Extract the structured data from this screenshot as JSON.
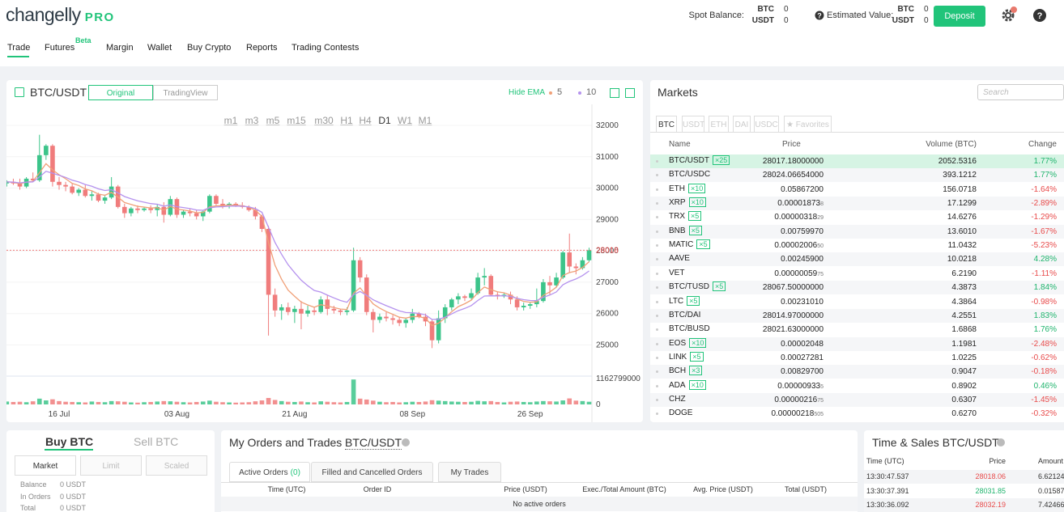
{
  "header": {
    "logo": "changelly",
    "logo_pro": "PRO",
    "spot_label": "Spot Balance:",
    "spot": [
      {
        "asset": "BTC",
        "amount": "0"
      },
      {
        "asset": "USDT",
        "amount": "0"
      }
    ],
    "estimated_label": "Estimated Value:",
    "estimated": [
      {
        "asset": "BTC",
        "amount": "0"
      },
      {
        "asset": "USDT",
        "amount": "0"
      }
    ],
    "deposit": "Deposit"
  },
  "nav": {
    "items": [
      "Trade",
      "Futures",
      "Margin",
      "Wallet",
      "Buy Crypto",
      "Reports",
      "Trading Contests"
    ],
    "badge": "Beta"
  },
  "chart_panel": {
    "pair": "BTC/USDT",
    "views": [
      "Original",
      "TradingView"
    ],
    "hide_ema": "Hide EMA",
    "timeframes": [
      "m1",
      "m3",
      "m5",
      "m15",
      "m30",
      "H1",
      "H4",
      "D1",
      "W1",
      "M1"
    ],
    "active_timeframe": 7
  },
  "chart": {
    "type": "candlestick",
    "up_color": "#3cc48a",
    "down_color": "#f07c7c",
    "ema": [
      {
        "period": 5,
        "color": "#f0a078"
      },
      {
        "period": 10,
        "color": "#b592ee"
      }
    ],
    "ylim": [
      24110,
      32670
    ],
    "yticks": [
      25000,
      26000,
      27000,
      28000,
      29000,
      30000,
      31000,
      32000
    ],
    "vlim": [
      0,
      1162799000
    ],
    "vticks": [
      0,
      1162799000
    ],
    "categories": [
      null,
      null,
      null,
      null,
      null,
      null,
      null,
      null,
      "16 Jul",
      null,
      null,
      null,
      null,
      null,
      null,
      null,
      null,
      null,
      null,
      null,
      null,
      null,
      null,
      null,
      null,
      null,
      "03 Aug",
      null,
      null,
      null,
      null,
      null,
      null,
      null,
      null,
      null,
      null,
      null,
      null,
      null,
      null,
      null,
      null,
      null,
      "21 Aug",
      null,
      null,
      null,
      null,
      null,
      null,
      null,
      null,
      null,
      null,
      null,
      null,
      null,
      null,
      null,
      null,
      null,
      "08 Sep",
      null,
      null,
      null,
      null,
      null,
      null,
      null,
      null,
      null,
      null,
      null,
      null,
      null,
      null,
      null,
      null,
      null,
      "26 Sep",
      null,
      null,
      null,
      null,
      null,
      null,
      null,
      null,
      null
    ],
    "candles": [
      [
        30150,
        30250,
        30050,
        30200
      ],
      [
        30200,
        30300,
        30100,
        30150
      ],
      [
        30150,
        30300,
        29950,
        30050
      ],
      [
        30050,
        30350,
        30000,
        30300
      ],
      [
        30300,
        30500,
        30200,
        30250
      ],
      [
        30250,
        31700,
        30200,
        31050
      ],
      [
        31050,
        31400,
        30900,
        31350
      ],
      [
        31350,
        31400,
        30050,
        30200
      ],
      [
        30200,
        30350,
        29950,
        30100
      ],
      [
        30100,
        30200,
        29900,
        30050
      ],
      [
        30050,
        30150,
        29800,
        29850
      ],
      [
        29850,
        30000,
        29750,
        29950
      ],
      [
        29950,
        30100,
        29700,
        29750
      ],
      [
        29750,
        29900,
        29600,
        29800
      ],
      [
        29800,
        29850,
        29550,
        29600
      ],
      [
        29600,
        29750,
        29500,
        29700
      ],
      [
        29700,
        30350,
        29650,
        30050
      ],
      [
        30050,
        30100,
        29350,
        29400
      ],
      [
        29400,
        29500,
        29050,
        29200
      ],
      [
        29200,
        29400,
        29100,
        29350
      ],
      [
        29350,
        29450,
        29200,
        29300
      ],
      [
        29300,
        29400,
        29250,
        29350
      ],
      [
        29350,
        29450,
        29200,
        29300
      ],
      [
        29300,
        29500,
        29100,
        29400
      ],
      [
        29400,
        29550,
        28900,
        29150
      ],
      [
        29150,
        29750,
        29100,
        29650
      ],
      [
        29650,
        29700,
        29050,
        29150
      ],
      [
        29150,
        29300,
        29050,
        29250
      ],
      [
        29250,
        29350,
        29100,
        29200
      ],
      [
        29200,
        29300,
        29000,
        29100
      ],
      [
        29100,
        29300,
        28950,
        29250
      ],
      [
        29250,
        29800,
        29200,
        29750
      ],
      [
        29750,
        29800,
        29450,
        29500
      ],
      [
        29500,
        29650,
        29350,
        29450
      ],
      [
        29450,
        29550,
        29350,
        29500
      ],
      [
        29500,
        29550,
        29400,
        29450
      ],
      [
        29450,
        29550,
        29350,
        29400
      ],
      [
        29400,
        29450,
        29250,
        29300
      ],
      [
        29300,
        29400,
        29000,
        29100
      ],
      [
        29100,
        29150,
        28600,
        28700
      ],
      [
        28700,
        28800,
        25300,
        26600
      ],
      [
        26600,
        26800,
        25900,
        26100
      ],
      [
        26100,
        26300,
        25800,
        26200
      ],
      [
        26200,
        26350,
        25950,
        26050
      ],
      [
        26050,
        26250,
        25700,
        26150
      ],
      [
        26150,
        26400,
        25500,
        26000
      ],
      [
        26000,
        26250,
        25900,
        26100
      ],
      [
        26100,
        26200,
        25950,
        26050
      ],
      [
        26050,
        26550,
        26000,
        26450
      ],
      [
        26450,
        26600,
        25950,
        26150
      ],
      [
        26150,
        26250,
        26000,
        26100
      ],
      [
        26100,
        26150,
        25950,
        26050
      ],
      [
        26050,
        26200,
        25950,
        26100
      ],
      [
        26100,
        28100,
        26050,
        27700
      ],
      [
        27700,
        27800,
        27000,
        27150
      ],
      [
        27150,
        27250,
        25950,
        26050
      ],
      [
        26050,
        26150,
        25400,
        25800
      ],
      [
        25800,
        26000,
        25700,
        25900
      ],
      [
        25900,
        26050,
        25750,
        25850
      ],
      [
        25850,
        25950,
        25650,
        25800
      ],
      [
        25800,
        25900,
        25600,
        25700
      ],
      [
        25700,
        25850,
        25550,
        25800
      ],
      [
        25800,
        26150,
        25700,
        26000
      ],
      [
        26000,
        26050,
        25850,
        25900
      ],
      [
        25900,
        26000,
        25600,
        25750
      ],
      [
        25750,
        25800,
        24900,
        25150
      ],
      [
        25150,
        26100,
        25050,
        25850
      ],
      [
        25850,
        26300,
        25700,
        26200
      ],
      [
        26200,
        26500,
        26100,
        26450
      ],
      [
        26450,
        26650,
        26300,
        26550
      ],
      [
        26550,
        26600,
        26400,
        26500
      ],
      [
        26500,
        26800,
        26450,
        26650
      ],
      [
        26650,
        27300,
        26600,
        27150
      ],
      [
        27150,
        27450,
        26900,
        27200
      ],
      [
        27200,
        27250,
        26550,
        26600
      ],
      [
        26600,
        26700,
        26450,
        26550
      ],
      [
        26550,
        26650,
        26500,
        26600
      ],
      [
        26600,
        26700,
        26300,
        26450
      ],
      [
        26450,
        26550,
        26100,
        26200
      ],
      [
        26200,
        26350,
        26100,
        26250
      ],
      [
        26250,
        26350,
        26150,
        26300
      ],
      [
        26300,
        26800,
        26200,
        26400
      ],
      [
        26400,
        27100,
        26350,
        27000
      ],
      [
        27000,
        27200,
        26600,
        26900
      ],
      [
        26900,
        27300,
        26850,
        27150
      ],
      [
        27150,
        28000,
        27100,
        27950
      ],
      [
        27950,
        28550,
        27300,
        27500
      ],
      [
        27500,
        27600,
        27250,
        27450
      ],
      [
        27450,
        27800,
        27400,
        27700
      ],
      [
        27700,
        28100,
        27650,
        28018
      ]
    ],
    "volumes": [
      130000000,
      110000000,
      120000000,
      100000000,
      140000000,
      260000000,
      180000000,
      230000000,
      150000000,
      120000000,
      110000000,
      100000000,
      90000000,
      130000000,
      110000000,
      100000000,
      150000000,
      140000000,
      120000000,
      90000000,
      80000000,
      100000000,
      110000000,
      130000000,
      150000000,
      140000000,
      120000000,
      100000000,
      90000000,
      110000000,
      130000000,
      170000000,
      120000000,
      100000000,
      90000000,
      80000000,
      90000000,
      100000000,
      140000000,
      180000000,
      290000000,
      200000000,
      150000000,
      120000000,
      110000000,
      130000000,
      100000000,
      90000000,
      140000000,
      120000000,
      100000000,
      90000000,
      110000000,
      1120000000,
      260000000,
      220000000,
      170000000,
      120000000,
      100000000,
      110000000,
      90000000,
      100000000,
      120000000,
      110000000,
      130000000,
      190000000,
      170000000,
      150000000,
      130000000,
      120000000,
      110000000,
      120000000,
      160000000,
      140000000,
      150000000,
      110000000,
      90000000,
      120000000,
      130000000,
      110000000,
      100000000,
      130000000,
      150000000,
      140000000,
      130000000,
      180000000,
      270000000,
      170000000,
      150000000,
      120000000
    ]
  },
  "markets": {
    "title": "Markets",
    "search": "Search",
    "tabs": [
      "BTC",
      "USDT",
      "ETH",
      "DAI",
      "USDC",
      "★ Favorites"
    ],
    "columns": [
      "Name",
      "Price",
      "Volume (BTC)",
      "Change"
    ],
    "rows": [
      {
        "name": "BTC/USDT",
        "lev": "×25",
        "price": "28017.18000000",
        "volume": "2052.5316",
        "change": "1.77%"
      },
      {
        "name": "BTC/USDC",
        "price": "28024.06654000",
        "volume": "393.1212",
        "change": "1.77%"
      },
      {
        "name": "ETH",
        "lev": "×10",
        "price": "0.05867200",
        "volume": "156.0718",
        "change": "-1.64%"
      },
      {
        "name": "XRP",
        "lev": "×10",
        "price": "0.00001873",
        "tail": "8",
        "volume": "17.1299",
        "change": "-2.89%"
      },
      {
        "name": "TRX",
        "lev": "×5",
        "price": "0.00000318",
        "tail": "29",
        "volume": "14.6276",
        "change": "-1.29%"
      },
      {
        "name": "BNB",
        "lev": "×5",
        "price": "0.00759970",
        "volume": "13.6010",
        "change": "-1.67%"
      },
      {
        "name": "MATIC",
        "lev": "×5",
        "price": "0.00002006",
        "tail": "50",
        "volume": "11.0432",
        "change": "-5.23%"
      },
      {
        "name": "AAVE",
        "price": "0.00245900",
        "volume": "10.0218",
        "change": "4.28%"
      },
      {
        "name": "VET",
        "price": "0.00000059",
        "tail": "75",
        "volume": "6.2190",
        "change": "-1.11%"
      },
      {
        "name": "BTC/TUSD",
        "lev": "×5",
        "price": "28067.50000000",
        "volume": "4.3873",
        "change": "1.84%"
      },
      {
        "name": "LTC",
        "lev": "×5",
        "price": "0.00231010",
        "volume": "4.3864",
        "change": "-0.98%"
      },
      {
        "name": "BTC/DAI",
        "price": "28014.97000000",
        "volume": "4.2551",
        "change": "1.83%"
      },
      {
        "name": "BTC/BUSD",
        "price": "28021.63000000",
        "volume": "1.6868",
        "change": "1.76%"
      },
      {
        "name": "EOS",
        "lev": "×10",
        "price": "0.00002048",
        "volume": "1.1981",
        "change": "-2.48%"
      },
      {
        "name": "LINK",
        "lev": "×5",
        "price": "0.00027281",
        "volume": "1.0225",
        "change": "-0.62%"
      },
      {
        "name": "BCH",
        "lev": "×3",
        "price": "0.00829700",
        "volume": "0.9047",
        "change": "-0.18%"
      },
      {
        "name": "ADA",
        "lev": "×10",
        "price": "0.00000933",
        "tail": "5",
        "volume": "0.8902",
        "change": "0.46%"
      },
      {
        "name": "CHZ",
        "price": "0.00000216",
        "tail": "75",
        "volume": "0.6307",
        "change": "-1.45%"
      },
      {
        "name": "DOGE",
        "price": "0.00000218",
        "tail": "505",
        "volume": "0.6270",
        "change": "-0.32%"
      }
    ]
  },
  "trade_form": {
    "sides": [
      "Buy BTC",
      "Sell BTC"
    ],
    "order_types": [
      "Market",
      "Limit",
      "Scaled"
    ],
    "balances": [
      [
        "Balance",
        "0 USDT"
      ],
      [
        "In Orders",
        "0 USDT"
      ],
      [
        "Total",
        "0 USDT"
      ]
    ]
  },
  "orders": {
    "title": "My Orders and Trades",
    "pair": "BTC/USDT",
    "tabs": [
      "Active Orders",
      "Filled and Cancelled Orders",
      "My Trades"
    ],
    "active_count": "(0)",
    "columns": [
      "Time (UTC)",
      "Order ID",
      "Price (USDT)",
      "Exec./Total Amount (BTC)",
      "Avg. Price (USDT)",
      "Total (USDT)"
    ],
    "empty": "No active orders"
  },
  "time_sales": {
    "title": "Time & Sales",
    "pair": "BTC/USDT",
    "columns": [
      "Time (UTC)",
      "Price",
      "Amount"
    ],
    "rows": [
      {
        "time": "13:30:47.537",
        "price": "28018.06",
        "amount": "6.62124",
        "color": "#e84b4b"
      },
      {
        "time": "13:30:37.391",
        "price": "28031.85",
        "amount": "0.01587",
        "color": "#1fb46d"
      },
      {
        "time": "13:30:36.092",
        "price": "28032.19",
        "amount": "7.42466",
        "color": "#e84b4b"
      }
    ]
  }
}
